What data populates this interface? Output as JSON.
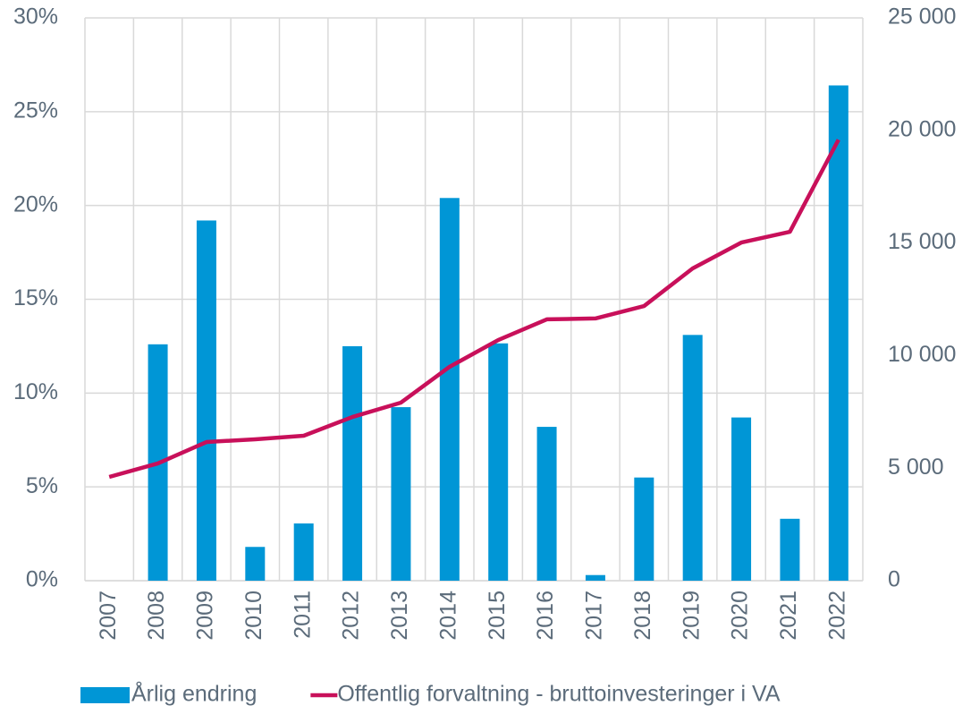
{
  "chart_data": {
    "type": "bar_line",
    "categories": [
      "2007",
      "2008",
      "2009",
      "2010",
      "2011",
      "2012",
      "2013",
      "2014",
      "2015",
      "2016",
      "2017",
      "2018",
      "2019",
      "2020",
      "2021",
      "2022"
    ],
    "series": [
      {
        "name": "Årlig endring",
        "type": "bar",
        "color": "#0096d6",
        "values": [
          null,
          12.6,
          19.2,
          1.8,
          3.05,
          12.5,
          9.25,
          20.4,
          12.65,
          8.2,
          0.3,
          5.5,
          13.1,
          8.7,
          3.3,
          26.4
        ]
      },
      {
        "name": "Offentlig forvaltning - bruttoinvesteringer i VA",
        "type": "line",
        "axis": "y2",
        "color": "#c8105a",
        "values": [
          4610,
          5210,
          6160,
          6280,
          6440,
          7270,
          7910,
          9500,
          10690,
          11610,
          11650,
          12200,
          13870,
          15020,
          15500,
          19590
        ]
      }
    ],
    "ylim": [
      0,
      30
    ],
    "yticks": [
      {
        "value": 0,
        "label": "0%"
      },
      {
        "value": 5,
        "label": "5%"
      },
      {
        "value": 10,
        "label": "10%"
      },
      {
        "value": 15,
        "label": "15%"
      },
      {
        "value": 20,
        "label": "20%"
      },
      {
        "value": 25,
        "label": "25%"
      },
      {
        "value": 30,
        "label": "30%"
      }
    ],
    "y2lim": [
      0,
      25000
    ],
    "y2ticks": [
      0,
      {
        "value": 5000,
        "label": "5 000"
      },
      {
        "value": 10000,
        "label": "10 000"
      },
      {
        "value": 15000,
        "label": "15 000"
      },
      {
        "value": 20000,
        "label": "20 000"
      },
      {
        "value": 25000,
        "label": "25 000"
      }
    ],
    "grid": true,
    "legend": "bottom"
  }
}
